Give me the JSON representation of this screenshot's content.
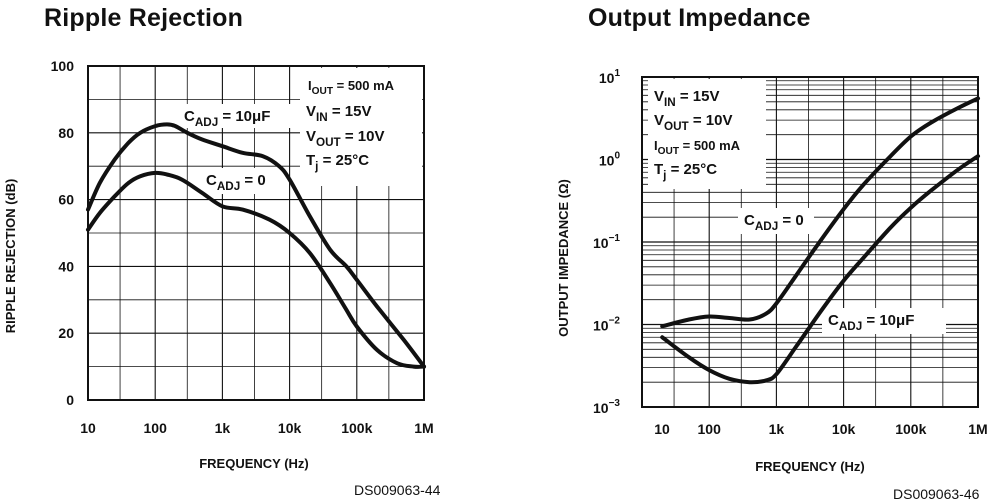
{
  "chart_data": [
    {
      "type": "line",
      "title": "Ripple Rejection",
      "xlabel": "FREQUENCY (Hz)",
      "ylabel": "RIPPLE REJECTION (dB)",
      "x_scale": "log",
      "xlim": [
        10,
        1000000
      ],
      "ylim": [
        0,
        100
      ],
      "x_tick_values": [
        10,
        100,
        1000,
        10000,
        100000,
        1000000
      ],
      "x_tick_labels": [
        "10",
        "100",
        "1k",
        "10k",
        "100k",
        "1M"
      ],
      "y_tick_values": [
        0,
        20,
        40,
        60,
        80,
        100
      ],
      "y_tick_labels": [
        "0",
        "20",
        "40",
        "60",
        "80",
        "100"
      ],
      "grid": true,
      "annotations": {
        "iout": {
          "main": "I",
          "sub": "OUT",
          "rest": " = 500 mA"
        },
        "vin": {
          "main": "V",
          "sub": "IN",
          "rest": " = 15V"
        },
        "vout": {
          "main": "V",
          "sub": "OUT",
          "rest": " = 10V"
        },
        "tj": {
          "main": "T",
          "sub": "j",
          "rest": " = 25°C"
        },
        "cadj_10uf": {
          "main": "C",
          "sub": "ADJ",
          "rest": " = 10μF"
        },
        "cadj_0": {
          "main": "C",
          "sub": "ADJ",
          "rest": " = 0"
        }
      },
      "series": [
        {
          "name": "CADJ = 10μF",
          "x": [
            10,
            15,
            25,
            40,
            60,
            100,
            150,
            200,
            300,
            500,
            1000,
            2000,
            4000,
            7000,
            10000,
            20000,
            40000,
            70000,
            100000,
            200000,
            500000,
            1000000
          ],
          "y": [
            57,
            65,
            72,
            77,
            80,
            82,
            82.5,
            82,
            80,
            78,
            76,
            74,
            73,
            70,
            66,
            55,
            45,
            40,
            36,
            28,
            18,
            10
          ]
        },
        {
          "name": "CADJ = 0",
          "x": [
            10,
            15,
            25,
            40,
            60,
            100,
            150,
            250,
            500,
            1000,
            2000,
            5000,
            10000,
            20000,
            40000,
            70000,
            100000,
            200000,
            400000,
            700000,
            1000000
          ],
          "y": [
            51,
            56,
            61,
            65,
            67,
            68,
            67.5,
            66,
            62,
            58,
            57,
            54,
            50,
            44,
            35,
            27,
            22,
            15,
            11,
            10,
            10
          ]
        }
      ]
    },
    {
      "type": "line",
      "title": "Output Impedance",
      "xlabel": "FREQUENCY (Hz)",
      "ylabel": "OUTPUT IMPEDANCE (Ω)",
      "x_scale": "log",
      "y_scale": "log",
      "xlim": [
        10,
        1000000
      ],
      "ylim": [
        0.001,
        10
      ],
      "x_tick_values": [
        10,
        100,
        1000,
        10000,
        100000,
        1000000
      ],
      "x_tick_labels": [
        "10",
        "100",
        "1k",
        "10k",
        "100k",
        "1M"
      ],
      "y_tick_values": [
        0.001,
        0.01,
        0.1,
        1,
        10
      ],
      "y_tick_base": [
        "10",
        "10",
        "10",
        "10",
        "10"
      ],
      "y_tick_exp": [
        "−3",
        "−2",
        "−1",
        "0",
        "1"
      ],
      "grid": true,
      "annotations": {
        "vin": {
          "main": "V",
          "sub": "IN",
          "rest": " = 15V"
        },
        "vout": {
          "main": "V",
          "sub": "OUT",
          "rest": " = 10V"
        },
        "iout": {
          "main": "I",
          "sub": "OUT",
          "rest": " = 500 mA"
        },
        "tj": {
          "main": "T",
          "sub": "j",
          "rest": " = 25°C"
        },
        "cadj_0": {
          "main": "C",
          "sub": "ADJ",
          "rest": " = 0"
        },
        "cadj_10uf": {
          "main": "C",
          "sub": "ADJ",
          "rest": " = 10μF"
        }
      },
      "series": [
        {
          "name": "CADJ = 0",
          "x": [
            20,
            50,
            100,
            200,
            400,
            700,
            1000,
            2000,
            4000,
            10000,
            20000,
            50000,
            100000,
            200000,
            500000,
            1000000
          ],
          "y": [
            0.0095,
            0.0115,
            0.0125,
            0.012,
            0.0115,
            0.0135,
            0.018,
            0.04,
            0.09,
            0.25,
            0.5,
            1.1,
            1.9,
            2.8,
            4.2,
            5.5
          ]
        },
        {
          "name": "CADJ = 10μF",
          "x": [
            20,
            50,
            100,
            200,
            400,
            700,
            1000,
            2000,
            5000,
            10000,
            20000,
            50000,
            100000,
            200000,
            500000,
            1000000
          ],
          "y": [
            0.007,
            0.004,
            0.0028,
            0.0022,
            0.002,
            0.0021,
            0.0025,
            0.0055,
            0.016,
            0.034,
            0.065,
            0.15,
            0.26,
            0.42,
            0.75,
            1.1
          ]
        }
      ]
    }
  ],
  "figure_codes": [
    "DS009063-44",
    "DS009063-46"
  ]
}
